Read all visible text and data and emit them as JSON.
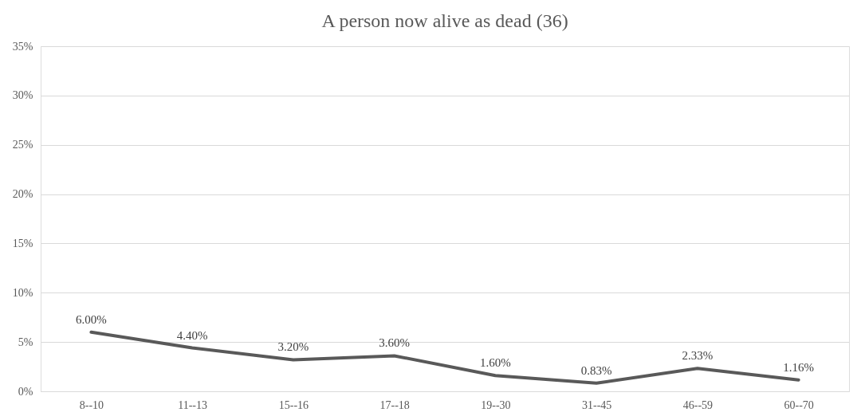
{
  "chart_data": {
    "type": "line",
    "title": "A person now alive as dead (36)",
    "categories": [
      "8--10",
      "11--13",
      "15--16",
      "17--18",
      "19--30",
      "31--45",
      "46--59",
      "60--70"
    ],
    "series": [
      {
        "color": "#595959",
        "values": [
          6.0,
          4.4,
          3.2,
          3.6,
          1.6,
          0.83,
          2.33,
          1.16
        ],
        "value_labels": [
          "6.00%",
          "4.40%",
          "3.20%",
          "3.60%",
          "1.60%",
          "0.83%",
          "2.33%",
          "1.16%"
        ]
      }
    ],
    "ylim": [
      0,
      35
    ],
    "yticks": [
      {
        "value": 0,
        "label": "0%"
      },
      {
        "value": 5,
        "label": "5%"
      },
      {
        "value": 10,
        "label": "10%"
      },
      {
        "value": 15,
        "label": "15%"
      },
      {
        "value": 20,
        "label": "20%"
      },
      {
        "value": 25,
        "label": "25%"
      },
      {
        "value": 30,
        "label": "30%"
      },
      {
        "value": 35,
        "label": "35%"
      }
    ],
    "grid": "y",
    "marker": "none",
    "line_style": "solid"
  }
}
